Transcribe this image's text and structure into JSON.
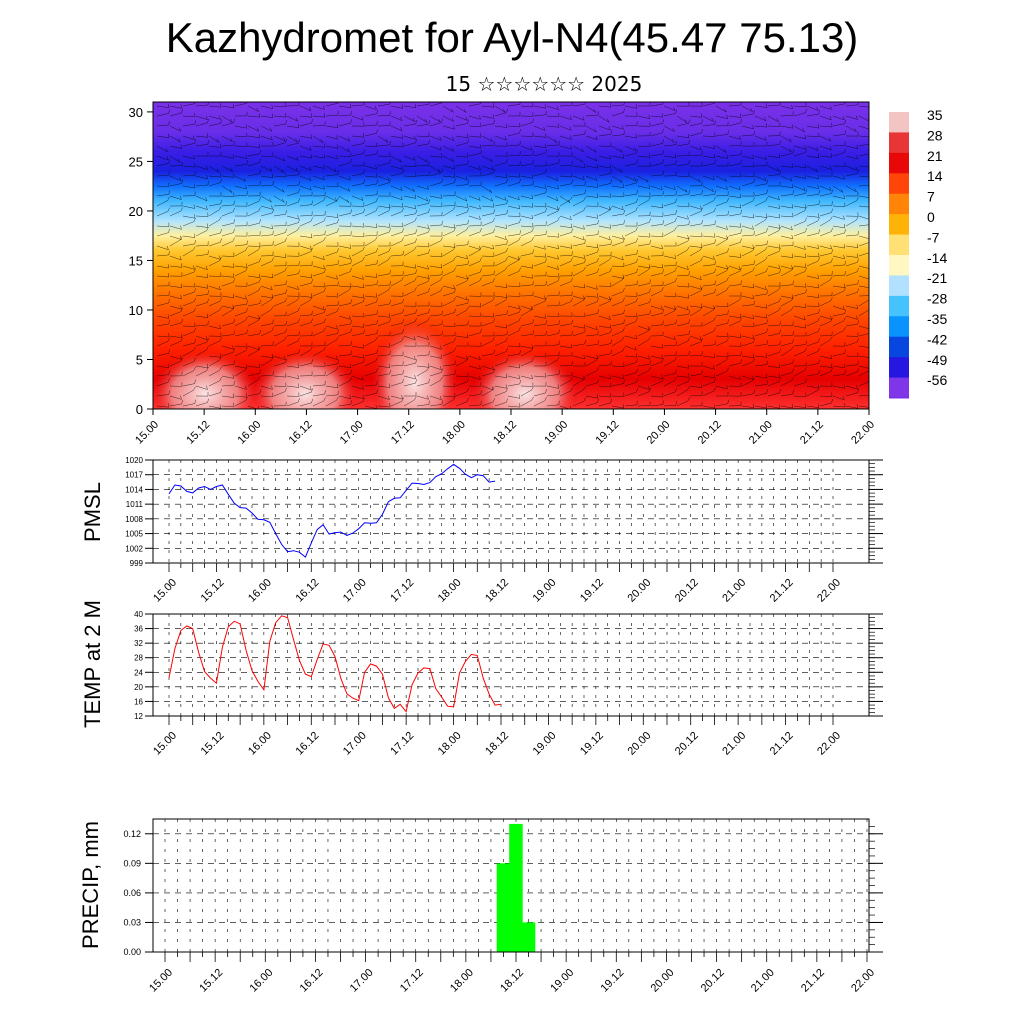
{
  "header": {
    "title": "Kazhydromet for Ayl-N4(45.47 75.13)",
    "subtitle": "15 ☆☆☆☆☆☆ 2025"
  },
  "colors": {
    "pmsl_line": "#0000ff",
    "temp_line": "#ff0000",
    "precip_bar": "#00ff00",
    "grid": "#000000"
  },
  "time_ticks": [
    "15.00",
    "15.12",
    "16.00",
    "16.12",
    "17.00",
    "17.12",
    "18.00",
    "18.12",
    "19.00",
    "19.12",
    "20.00",
    "20.12",
    "21.00",
    "21.12",
    "22.00"
  ],
  "chart_data": [
    {
      "type": "heatmap",
      "description_of_fields": "temperature-altitude cross section with wind barbs",
      "y_ticks": [
        "0",
        "5",
        "10",
        "15",
        "20",
        "25",
        "30"
      ],
      "ylim": [
        0,
        31
      ],
      "x_ticks": [
        "15.00",
        "15.12",
        "16.00",
        "16.12",
        "17.00",
        "17.12",
        "18.00",
        "18.12",
        "19.00",
        "19.12",
        "20.00",
        "20.12",
        "21.00",
        "21.12",
        "22.00"
      ],
      "colorbar_labels": [
        "35",
        "28",
        "21",
        "14",
        "7",
        "0",
        "-7",
        "-14",
        "-21",
        "-28",
        "-35",
        "-42",
        "-49",
        "-56"
      ],
      "colorbar_colors": [
        "#f2c2c2",
        "#e83030",
        "#e80000",
        "#ff4000",
        "#ff8000",
        "#ffb000",
        "#ffe070",
        "#fff8c0",
        "#b0e0ff",
        "#40c0ff",
        "#0090ff",
        "#0040e0",
        "#2010e0",
        "#7a30e8"
      ],
      "profile_levels": [
        0,
        3,
        6,
        9,
        12,
        14,
        16,
        17.5,
        19,
        21,
        22.5,
        24,
        26,
        28,
        31
      ],
      "profile_colors": [
        "#ff3030",
        "#e60000",
        "#ff2000",
        "#ff4500",
        "#ff7800",
        "#ffa000",
        "#ffc830",
        "#fff0a0",
        "#b0e4ff",
        "#40b8ff",
        "#1070ff",
        "#1a20e0",
        "#3b1ee6",
        "#6a2ee8",
        "#7a30e8"
      ]
    },
    {
      "type": "line",
      "ylabel": "PMSL",
      "y_ticks": [
        "999",
        "1002",
        "1005",
        "1008",
        "1011",
        "1014",
        "1017",
        "1020"
      ],
      "ylim": [
        999,
        1020
      ],
      "x_ticks": [
        "15.00",
        "15.12",
        "16.00",
        "16.12",
        "17.00",
        "17.12",
        "18.00",
        "18.12",
        "19.00",
        "19.12",
        "20.00",
        "20.12",
        "21.00",
        "21.12",
        "22.00"
      ],
      "series": [
        {
          "values": [
            1013.1,
            1014.9,
            1014.7,
            1013.6,
            1013.3,
            1014.3,
            1014.6,
            1014.0,
            1014.6,
            1014.9,
            1013.0,
            1011.2,
            1010.3,
            1010.2,
            1009.2,
            1007.9,
            1007.8,
            1007.3,
            1005.0,
            1002.8,
            1001.3,
            1001.5,
            1001.2,
            1000.2,
            1003.1,
            1005.8,
            1006.8,
            1004.9,
            1005.2,
            1005.3,
            1004.6,
            1005.1,
            1006.0,
            1007.2,
            1007.1,
            1007.2,
            1008.9,
            1011.5,
            1012.2,
            1012.3,
            1013.8,
            1015.3,
            1015.2,
            1015.0,
            1015.4,
            1016.6,
            1017.2,
            1018.2,
            1019.1,
            1018.3,
            1017.1,
            1016.4,
            1017.0,
            1016.8,
            1015.5,
            1015.7
          ]
        }
      ]
    },
    {
      "type": "line",
      "ylabel": "TEMP at 2 M",
      "y_ticks": [
        "12",
        "16",
        "20",
        "24",
        "28",
        "32",
        "36",
        "40"
      ],
      "ylim": [
        12,
        40
      ],
      "x_ticks": [
        "15.00",
        "15.12",
        "16.00",
        "16.12",
        "17.00",
        "17.12",
        "18.00",
        "18.12",
        "19.00",
        "19.12",
        "20.00",
        "20.12",
        "21.00",
        "21.12",
        "22.00"
      ],
      "series": [
        {
          "values": [
            22.5,
            30.5,
            35.5,
            36.7,
            36.0,
            29.5,
            24.2,
            22.4,
            21.0,
            30.9,
            36.5,
            38.0,
            37.3,
            30.0,
            24.5,
            21.5,
            19.2,
            32.5,
            37.6,
            39.5,
            39.0,
            33.0,
            27.3,
            23.5,
            22.8,
            27.5,
            31.8,
            31.4,
            28.3,
            22.3,
            18.1,
            16.9,
            16.2,
            24.0,
            26.3,
            25.7,
            23.5,
            17.0,
            14.1,
            15.2,
            13.2,
            20.6,
            23.8,
            25.2,
            25.0,
            19.5,
            17.2,
            14.7,
            14.5,
            23.8,
            27.0,
            28.9,
            28.6,
            22.4,
            18.0,
            15.0,
            15.2
          ]
        }
      ]
    },
    {
      "type": "bar",
      "ylabel": "PRECIP, mm",
      "y_ticks": [
        "0.00",
        "0.03",
        "0.06",
        "0.09",
        "0.12"
      ],
      "ylim": [
        0,
        0.135
      ],
      "x_ticks": [
        "15.00",
        "15.12",
        "16.00",
        "16.12",
        "17.00",
        "17.12",
        "18.00",
        "18.12",
        "19.00",
        "19.12",
        "20.00",
        "20.12",
        "21.00",
        "21.12",
        "22.00"
      ],
      "bars": [
        {
          "x": "18.09",
          "value": 0.09
        },
        {
          "x": "18.12",
          "value": 0.13
        },
        {
          "x": "18.15",
          "value": 0.03
        }
      ]
    }
  ]
}
